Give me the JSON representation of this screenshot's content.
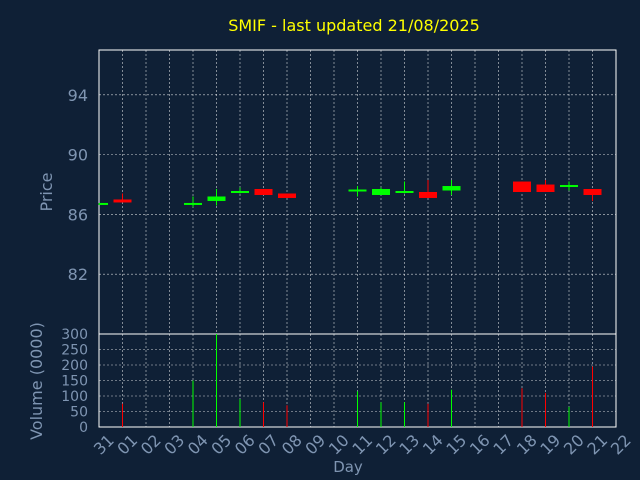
{
  "chart_data": {
    "type": "candlestick",
    "title": "SMIF - last updated 21/08/2025",
    "ylabel": "Price",
    "volume_ylabel": "Volume (0000)",
    "xlabel": "Day",
    "x_ticks": [
      "31",
      "01",
      "02",
      "03",
      "04",
      "05",
      "06",
      "07",
      "08",
      "09",
      "10",
      "11",
      "12",
      "13",
      "14",
      "15",
      "16",
      "17",
      "18",
      "19",
      "20",
      "21",
      "22"
    ],
    "price_ticks": [
      "82",
      "86",
      "90",
      "94"
    ],
    "volume_ticks": [
      "0",
      "50",
      "100",
      "150",
      "200",
      "250",
      "300"
    ],
    "price_range": [
      78,
      97
    ],
    "volume_range": [
      0,
      300
    ],
    "colors": {
      "up": "#00ff00",
      "down": "#ff0000",
      "background": "#0f2036",
      "grid": "#ffffff",
      "title": "#ffff00",
      "axis": "#7f95b2"
    },
    "candles": [
      {
        "day": 0,
        "open": 86.7,
        "close": 86.7,
        "high": 86.75,
        "low": 86.65,
        "volume": 0
      },
      {
        "day": 1,
        "open": 87.0,
        "close": 86.8,
        "high": 87.4,
        "low": 86.8,
        "volume": 75
      },
      {
        "day": 4,
        "open": 86.7,
        "close": 86.7,
        "high": 87.2,
        "low": 86.5,
        "volume": 150
      },
      {
        "day": 5,
        "open": 86.9,
        "close": 87.2,
        "high": 87.7,
        "low": 86.6,
        "volume": 300
      },
      {
        "day": 6,
        "open": 87.5,
        "close": 87.5,
        "high": 87.8,
        "low": 87.4,
        "volume": 90
      },
      {
        "day": 7,
        "open": 87.7,
        "close": 87.3,
        "high": 87.7,
        "low": 87.3,
        "volume": 80
      },
      {
        "day": 8,
        "open": 87.4,
        "close": 87.1,
        "high": 87.4,
        "low": 87.1,
        "volume": 70
      },
      {
        "day": 11,
        "open": 87.6,
        "close": 87.6,
        "high": 87.9,
        "low": 87.2,
        "volume": 115
      },
      {
        "day": 12,
        "open": 87.3,
        "close": 87.7,
        "high": 87.8,
        "low": 87.3,
        "volume": 80
      },
      {
        "day": 13,
        "open": 87.5,
        "close": 87.5,
        "high": 88.2,
        "low": 87.4,
        "volume": 80
      },
      {
        "day": 14,
        "open": 87.5,
        "close": 87.1,
        "high": 88.3,
        "low": 87.1,
        "volume": 75
      },
      {
        "day": 15,
        "open": 87.6,
        "close": 87.9,
        "high": 88.3,
        "low": 87.3,
        "volume": 120
      },
      {
        "day": 18,
        "open": 88.2,
        "close": 87.5,
        "high": 88.2,
        "low": 87.5,
        "volume": 125
      },
      {
        "day": 19,
        "open": 88.0,
        "close": 87.5,
        "high": 88.3,
        "low": 87.5,
        "volume": 110
      },
      {
        "day": 20,
        "open": 87.8,
        "close": 87.9,
        "high": 88.2,
        "low": 87.6,
        "volume": 65
      },
      {
        "day": 21,
        "open": 87.7,
        "close": 87.3,
        "high": 87.7,
        "low": 86.9,
        "volume": 195
      }
    ]
  }
}
